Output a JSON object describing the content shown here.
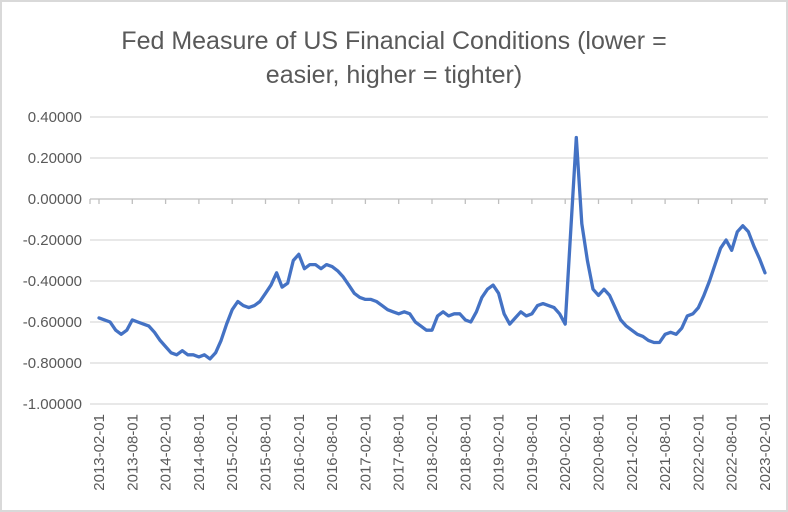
{
  "title": {
    "lines": [
      "Fed Measure of US Financial Conditions (lower =",
      "easier, higher = tighter)"
    ]
  },
  "colors": {
    "line": "#4472C4",
    "gridline": "#D9D9D9",
    "axis_line": "#BFBFBF",
    "text": "#595959",
    "frame_border": "#D9D9D9",
    "background": "#FFFFFF"
  },
  "chart_data": {
    "type": "line",
    "title": "Fed Measure of US Financial Conditions (lower = easier, higher = tighter)",
    "x_start": "2013-02-01",
    "x_end": "2023-02-01",
    "x_frequency": "monthly",
    "x_tick_labels": [
      "2013-02-01",
      "2013-08-01",
      "2014-02-01",
      "2014-08-01",
      "2015-02-01",
      "2015-08-01",
      "2016-02-01",
      "2016-08-01",
      "2017-02-01",
      "2017-08-01",
      "2018-02-01",
      "2018-08-01",
      "2019-02-01",
      "2019-08-01",
      "2020-02-01",
      "2020-08-01",
      "2021-02-01",
      "2021-08-01",
      "2022-02-01",
      "2022-08-01",
      "2023-02-01"
    ],
    "x_tick_every_n_months": 6,
    "y_ticks": [
      0.4,
      0.2,
      0.0,
      -0.2,
      -0.4,
      -0.6,
      -0.8,
      -1.0
    ],
    "y_tick_labels": [
      "0.40000",
      "0.20000",
      "0.00000",
      "-0.20000",
      "-0.40000",
      "-0.60000",
      "-0.80000",
      "-1.00000"
    ],
    "ylim": [
      -1.0,
      0.4
    ],
    "grid": "horizontal",
    "legend": "none",
    "series": [
      {
        "color": "#4472C4",
        "values": [
          -0.58,
          -0.59,
          -0.6,
          -0.64,
          -0.66,
          -0.64,
          -0.59,
          -0.6,
          -0.61,
          -0.62,
          -0.65,
          -0.69,
          -0.72,
          -0.75,
          -0.76,
          -0.74,
          -0.76,
          -0.76,
          -0.77,
          -0.76,
          -0.78,
          -0.75,
          -0.69,
          -0.61,
          -0.54,
          -0.5,
          -0.52,
          -0.53,
          -0.52,
          -0.5,
          -0.46,
          -0.42,
          -0.36,
          -0.43,
          -0.41,
          -0.3,
          -0.27,
          -0.34,
          -0.32,
          -0.32,
          -0.34,
          -0.32,
          -0.33,
          -0.35,
          -0.38,
          -0.42,
          -0.46,
          -0.48,
          -0.49,
          -0.49,
          -0.5,
          -0.52,
          -0.54,
          -0.55,
          -0.56,
          -0.55,
          -0.56,
          -0.6,
          -0.62,
          -0.64,
          -0.64,
          -0.57,
          -0.55,
          -0.57,
          -0.56,
          -0.56,
          -0.59,
          -0.6,
          -0.55,
          -0.48,
          -0.44,
          -0.42,
          -0.46,
          -0.56,
          -0.61,
          -0.58,
          -0.55,
          -0.57,
          -0.56,
          -0.52,
          -0.51,
          -0.52,
          -0.53,
          -0.56,
          -0.61,
          -0.15,
          0.3,
          -0.12,
          -0.3,
          -0.44,
          -0.47,
          -0.44,
          -0.47,
          -0.53,
          -0.59,
          -0.62,
          -0.64,
          -0.66,
          -0.67,
          -0.69,
          -0.7,
          -0.7,
          -0.66,
          -0.65,
          -0.66,
          -0.63,
          -0.57,
          -0.56,
          -0.53,
          -0.47,
          -0.4,
          -0.32,
          -0.24,
          -0.2,
          -0.25,
          -0.16,
          -0.13,
          -0.16,
          -0.23,
          -0.29,
          -0.36
        ]
      }
    ]
  }
}
